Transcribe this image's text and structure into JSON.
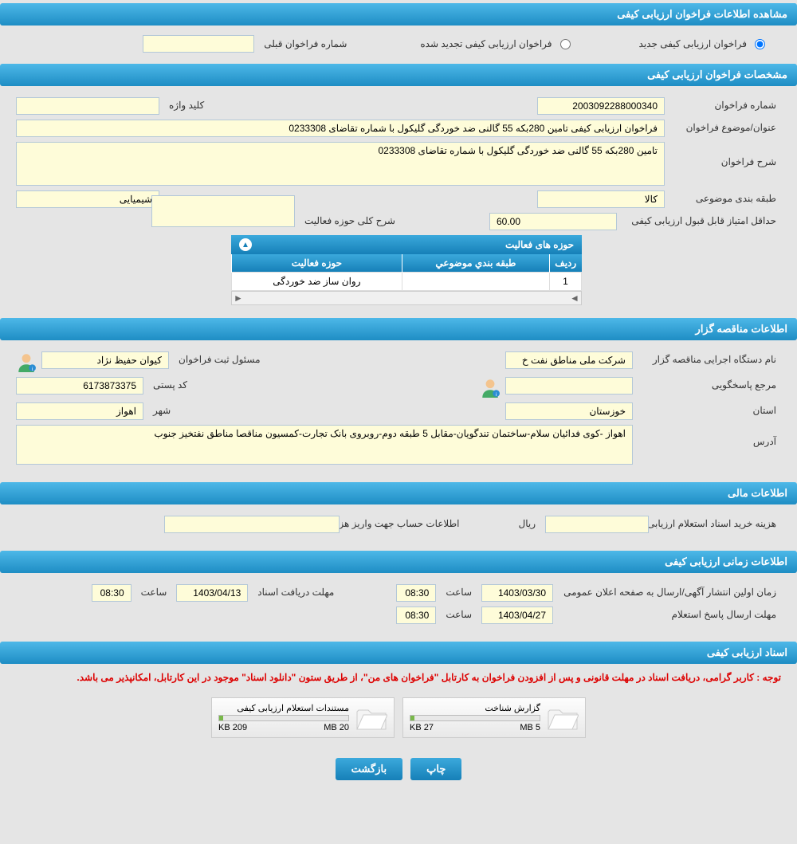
{
  "colors": {
    "header_grad_top": "#4db8e8",
    "header_grad_bottom": "#1e8dc4",
    "value_bg": "#fefcd9",
    "value_border": "#b4c8d8",
    "body_bg": "#e5e5e5",
    "notice": "#d00",
    "bar_fill": "#79b84a"
  },
  "section1": {
    "title": "مشاهده اطلاعات فراخوان ارزیابی کیفی",
    "radio_new": "فراخوان ارزیابی کیفی جدید",
    "radio_renew": "فراخوان ارزیابی کیفی تجدید شده",
    "prev_label": "شماره فراخوان قبلی",
    "prev_value": ""
  },
  "section2": {
    "title": "مشخصات فراخوان ارزیابی کیفی",
    "num_label": "شماره فراخوان",
    "num_value": "2003092288000340",
    "keyword_label": "کلید واژه",
    "keyword_value": "",
    "subject_label": "عنوان/موضوع فراخوان",
    "subject_value": "فراخوان ارزیابی کیفی تامین 280بکه 55 گالنی ضد خوردگی گلیکول با شماره تقاضای 0233308",
    "desc_label": "شرح فراخوان",
    "desc_value": "تامین 280بکه 55 گالنی ضد خوردگی گلیکول با شماره تقاضای 0233308",
    "cat_label": "طبقه بندی موضوعی",
    "cat_value": "کالا",
    "chem_value": "شیمیایی",
    "min_label": "حداقل امتیاز قابل قبول ارزیابی کیفی",
    "min_value": "60.00",
    "scope_label": "شرح کلی حوزه فعالیت",
    "scope_value": "",
    "inner_title": "حوزه های فعالیت",
    "table": {
      "col_row": "ردیف",
      "col_cat": "طبقه بندي موضوعي",
      "col_scope": "حوزه فعاليت",
      "rows": [
        {
          "idx": "1",
          "cat": "",
          "scope": "روان ساز ضد خوردگی"
        }
      ]
    }
  },
  "section3": {
    "title": "اطلاعات مناقصه گزار",
    "org_label": "نام دستگاه اجرایی مناقصه گزار",
    "org_value": "شرکت ملی مناطق نفت خ",
    "reg_label": "مسئول ثبت فراخوان",
    "reg_value": "کیوان حفیظ نژاد",
    "contact_label": "مرجع پاسخگویی",
    "contact_value": "",
    "post_label": "کد پستی",
    "post_value": "6173873375",
    "province_label": "استان",
    "province_value": "خوزستان",
    "city_label": "شهر",
    "city_value": "اهواز",
    "addr_label": "آدرس",
    "addr_value": "اهواز -کوی فدائیان سلام-ساختمان تندگویان-مقابل 5 طبقه دوم-روبروی بانک تجارت-کمسیون مناقصا مناطق نفتخیز جنوب"
  },
  "section4": {
    "title": "اطلاعات مالی",
    "cost_label": "هزینه خرید اسناد استعلام ارزیابی کیفی",
    "cost_value": "",
    "currency": "ریال",
    "acct_label": "اطلاعات حساب جهت واریز هزینه خرید اسناد",
    "acct_value": ""
  },
  "section5": {
    "title": "اطلاعات زمانی ارزیابی کیفی",
    "pub_label": "زمان اولین انتشار آگهی/ارسال به صفحه اعلان عمومی",
    "pub_date": "1403/03/30",
    "hour_label": "ساعت",
    "pub_time": "08:30",
    "deadline_label": "مهلت دریافت اسناد",
    "deadline_date": "1403/04/13",
    "deadline_time": "08:30",
    "reply_label": "مهلت ارسال پاسخ استعلام",
    "reply_date": "1403/04/27",
    "reply_time": "08:30"
  },
  "section6": {
    "title": "اسناد ارزیابی کیفی",
    "notice": "توجه : کاربر گرامی، دریافت اسناد در مهلت قانونی و پس از افزودن فراخوان به کارتابل \"فراخوان های من\"، از طریق ستون \"دانلود اسناد\" موجود در این کارتابل، امکانپذیر می باشد.",
    "files": [
      {
        "name": "گزارش شناخت",
        "used": "27 KB",
        "total": "5 MB",
        "fill_pct": 3
      },
      {
        "name": "مستندات استعلام ارزیابی کیفی",
        "used": "209 KB",
        "total": "20 MB",
        "fill_pct": 3
      }
    ]
  },
  "buttons": {
    "print": "چاپ",
    "back": "بازگشت"
  }
}
